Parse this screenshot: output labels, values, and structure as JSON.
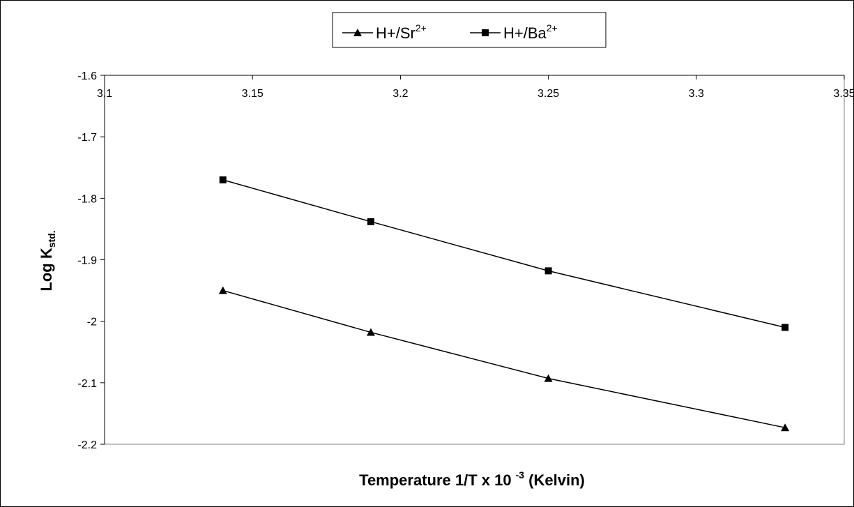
{
  "chart_data": {
    "type": "line",
    "title": "",
    "xlabel": "Temperature 1/T x 10",
    "xlabel_sup": "-3",
    "xlabel_suffix": " (Kelvin)",
    "ylabel": "Log K",
    "ylabel_sub": "std.",
    "xlim": [
      3.1,
      3.35
    ],
    "ylim": [
      -2.2,
      -1.6
    ],
    "x_ticks": [
      "3.1",
      "3.15",
      "3.2",
      "3.25",
      "3.3",
      "3.35"
    ],
    "y_ticks": [
      "-1.6",
      "-1.7",
      "-1.8",
      "-1.9",
      "-2",
      "-2.1",
      "-2.2"
    ],
    "x_axis_position": "top",
    "grid": false,
    "legend_position": "top-center",
    "series": [
      {
        "name": "H+/Sr",
        "name_sup": "2+",
        "marker": "triangle",
        "color": "#000000",
        "x": [
          3.14,
          3.19,
          3.25,
          3.33
        ],
        "y": [
          -1.95,
          -2.018,
          -2.093,
          -2.173
        ]
      },
      {
        "name": "H+/Ba",
        "name_sup": "2+",
        "marker": "square",
        "color": "#000000",
        "x": [
          3.14,
          3.19,
          3.25,
          3.33
        ],
        "y": [
          -1.77,
          -1.838,
          -1.918,
          -2.01
        ]
      }
    ]
  }
}
